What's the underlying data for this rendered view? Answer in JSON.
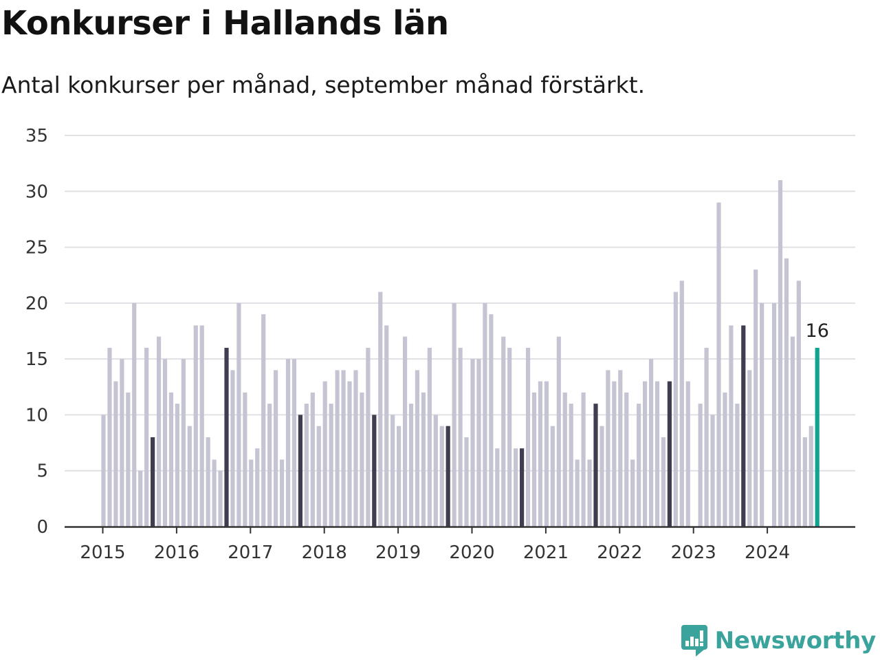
{
  "header": {
    "title": "Konkurser i Hallands län",
    "subtitle": "Antal konkurser per månad, september månad förstärkt."
  },
  "brand": {
    "name": "Newsworthy",
    "logo_icon": "newsworthy-logo-icon"
  },
  "colors": {
    "bar_default": "#c5c4d2",
    "bar_september": "#3f3d4f",
    "bar_latest": "#10a392",
    "gridline": "#e1e0e5",
    "axis": "#333333",
    "brand": "#3aa39b"
  },
  "chart_data": {
    "type": "bar",
    "title": "Konkurser i Hallands län",
    "subtitle": "Antal konkurser per månad, september månad förstärkt.",
    "xlabel": "",
    "ylabel": "",
    "ylim": [
      0,
      35
    ],
    "yticks": [
      0,
      5,
      10,
      15,
      20,
      25,
      30,
      35
    ],
    "xtick_labels": [
      "2015",
      "2016",
      "2017",
      "2018",
      "2019",
      "2020",
      "2021",
      "2022",
      "2023",
      "2024"
    ],
    "grid": true,
    "highlight_month": "september",
    "start": "2015-01",
    "end": "2024-09",
    "latest_value_label": "16",
    "series": [
      {
        "year": "2015",
        "values": [
          10,
          16,
          13,
          15,
          12,
          20,
          5,
          16,
          8,
          17,
          15,
          12
        ]
      },
      {
        "year": "2016",
        "values": [
          11,
          15,
          9,
          18,
          18,
          8,
          6,
          5,
          16,
          14,
          20,
          12
        ]
      },
      {
        "year": "2017",
        "values": [
          6,
          7,
          19,
          11,
          14,
          6,
          15,
          15,
          10,
          11,
          12,
          9
        ]
      },
      {
        "year": "2018",
        "values": [
          13,
          11,
          14,
          14,
          13,
          14,
          12,
          16,
          10,
          21,
          18,
          10
        ]
      },
      {
        "year": "2019",
        "values": [
          9,
          17,
          11,
          14,
          12,
          16,
          10,
          9,
          9,
          20,
          16,
          8
        ]
      },
      {
        "year": "2020",
        "values": [
          15,
          15,
          20,
          19,
          7,
          17,
          16,
          7,
          7,
          16,
          12,
          13
        ]
      },
      {
        "year": "2021",
        "values": [
          13,
          9,
          17,
          12,
          11,
          6,
          12,
          6,
          11,
          9,
          14,
          13
        ]
      },
      {
        "year": "2022",
        "values": [
          14,
          12,
          6,
          11,
          13,
          15,
          13,
          8,
          13,
          21,
          22,
          13
        ]
      },
      {
        "year": "2023",
        "values": [
          0,
          11,
          16,
          10,
          29,
          12,
          18,
          11,
          18,
          14,
          23,
          20
        ]
      },
      {
        "year": "2024",
        "values": [
          0,
          20,
          31,
          24,
          17,
          22,
          8,
          9,
          16
        ]
      }
    ]
  }
}
